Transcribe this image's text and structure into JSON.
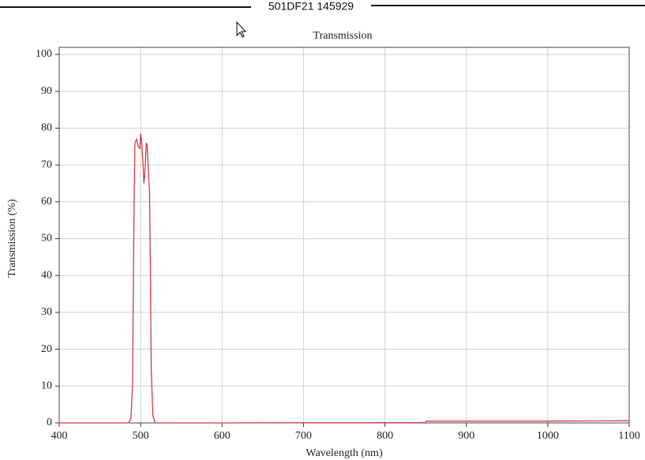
{
  "chart_data": {
    "type": "line",
    "subtitle": "501DF21 145929",
    "title": "Transmission",
    "x_label": "Wavelength (nm)",
    "y_label": "Transmission (%)",
    "x": [
      400,
      485,
      488,
      490,
      492,
      493,
      495,
      497,
      499,
      500,
      501,
      503,
      504,
      505,
      507,
      508,
      510,
      511,
      512,
      513,
      515,
      518,
      600,
      850,
      851,
      900,
      1000,
      1100
    ],
    "series": [
      {
        "name": "Transmission",
        "color": "#d23a4a",
        "values": [
          0,
          0,
          1,
          10,
          60,
          76,
          77,
          75,
          74.5,
          78.5,
          77,
          70,
          65,
          67,
          76,
          75.5,
          66,
          62,
          40,
          15,
          2,
          0,
          0,
          0.1,
          0.5,
          0.5,
          0.5,
          0.6
        ]
      }
    ],
    "xlim": [
      400,
      1100
    ],
    "xticks": [
      400,
      500,
      600,
      700,
      800,
      900,
      1000,
      1100
    ],
    "ylim": [
      0,
      100
    ],
    "yticks": [
      0,
      10,
      20,
      30,
      40,
      50,
      60,
      70,
      80,
      90,
      100
    ],
    "grid": true
  }
}
